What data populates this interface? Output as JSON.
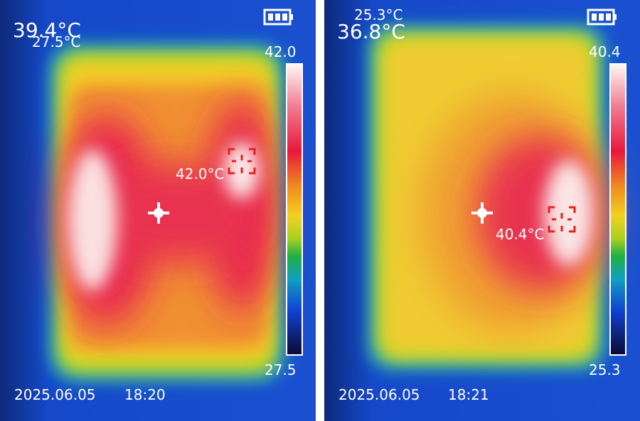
{
  "panels": [
    {
      "center_temp": "39.4°C",
      "min_temp": "27.5°C",
      "scale_max": "42.0",
      "scale_min": "27.5",
      "hotspot_temp": "42.0°C",
      "date": "2025.06.05",
      "time": "18:20"
    },
    {
      "center_temp": "36.8°C",
      "min_temp": "25.3°C",
      "scale_max": "40.4",
      "scale_min": "25.3",
      "hotspot_temp": "40.4°C",
      "date": "2025.06.05",
      "time": "18:21"
    }
  ]
}
